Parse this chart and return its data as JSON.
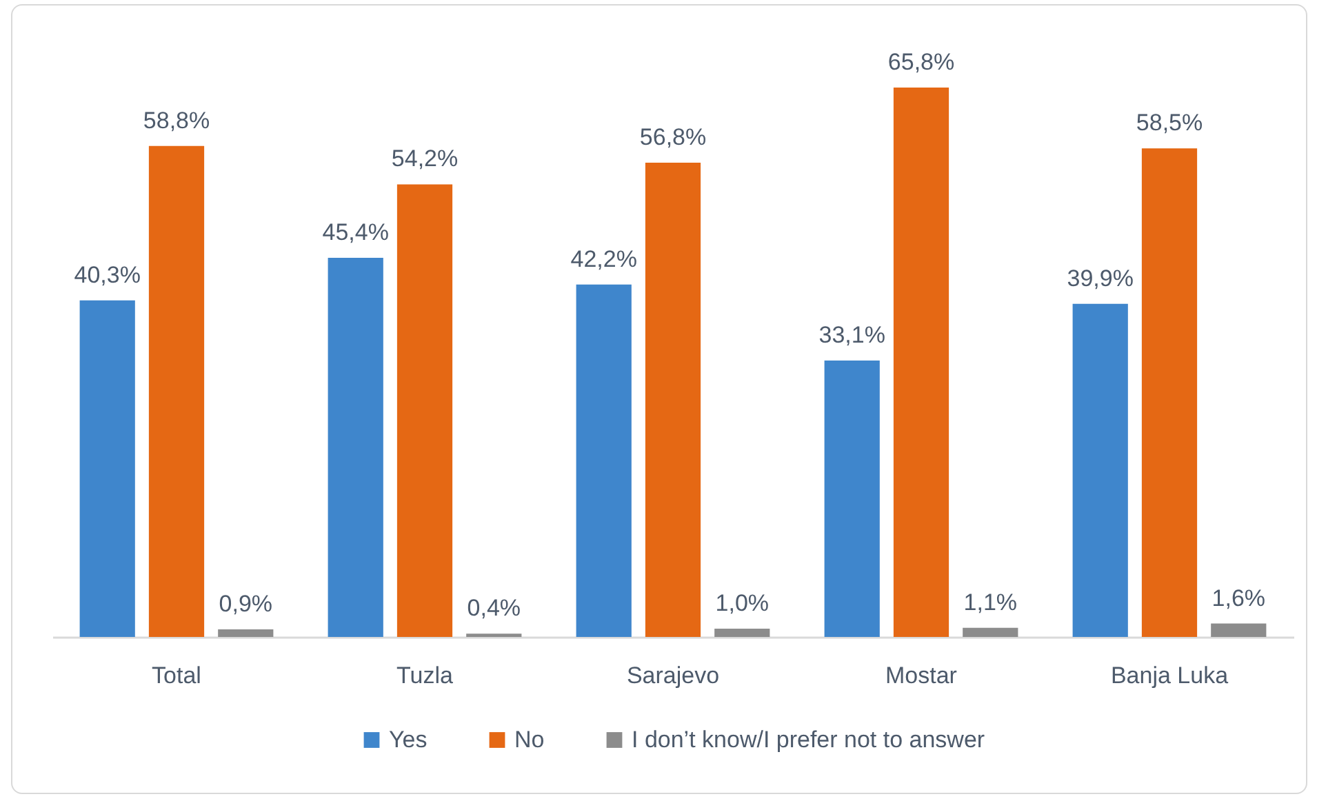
{
  "chart_data": {
    "type": "bar",
    "categories": [
      "Total",
      "Tuzla",
      "Sarajevo",
      "Mostar",
      "Banja Luka"
    ],
    "series": [
      {
        "name": "Yes",
        "color": "#3f86cc",
        "values": [
          40.3,
          45.4,
          42.2,
          33.1,
          39.9
        ],
        "value_labels": [
          "40,3%",
          "45,4%",
          "42,2%",
          "33,1%",
          "39,9%"
        ]
      },
      {
        "name": "No",
        "color": "#e56814",
        "values": [
          58.8,
          54.2,
          56.8,
          65.8,
          58.5
        ],
        "value_labels": [
          "58,8%",
          "54,2%",
          "56,8%",
          "65,8%",
          "58,5%"
        ]
      },
      {
        "name": "I don’t know/I prefer not to answer",
        "color": "#8c8c8c",
        "values": [
          0.9,
          0.4,
          1.0,
          1.1,
          1.6
        ],
        "value_labels": [
          "0,9%",
          "0,4%",
          "1,0%",
          "1,1%",
          "1,6%"
        ]
      }
    ],
    "legend": "bottom"
  }
}
